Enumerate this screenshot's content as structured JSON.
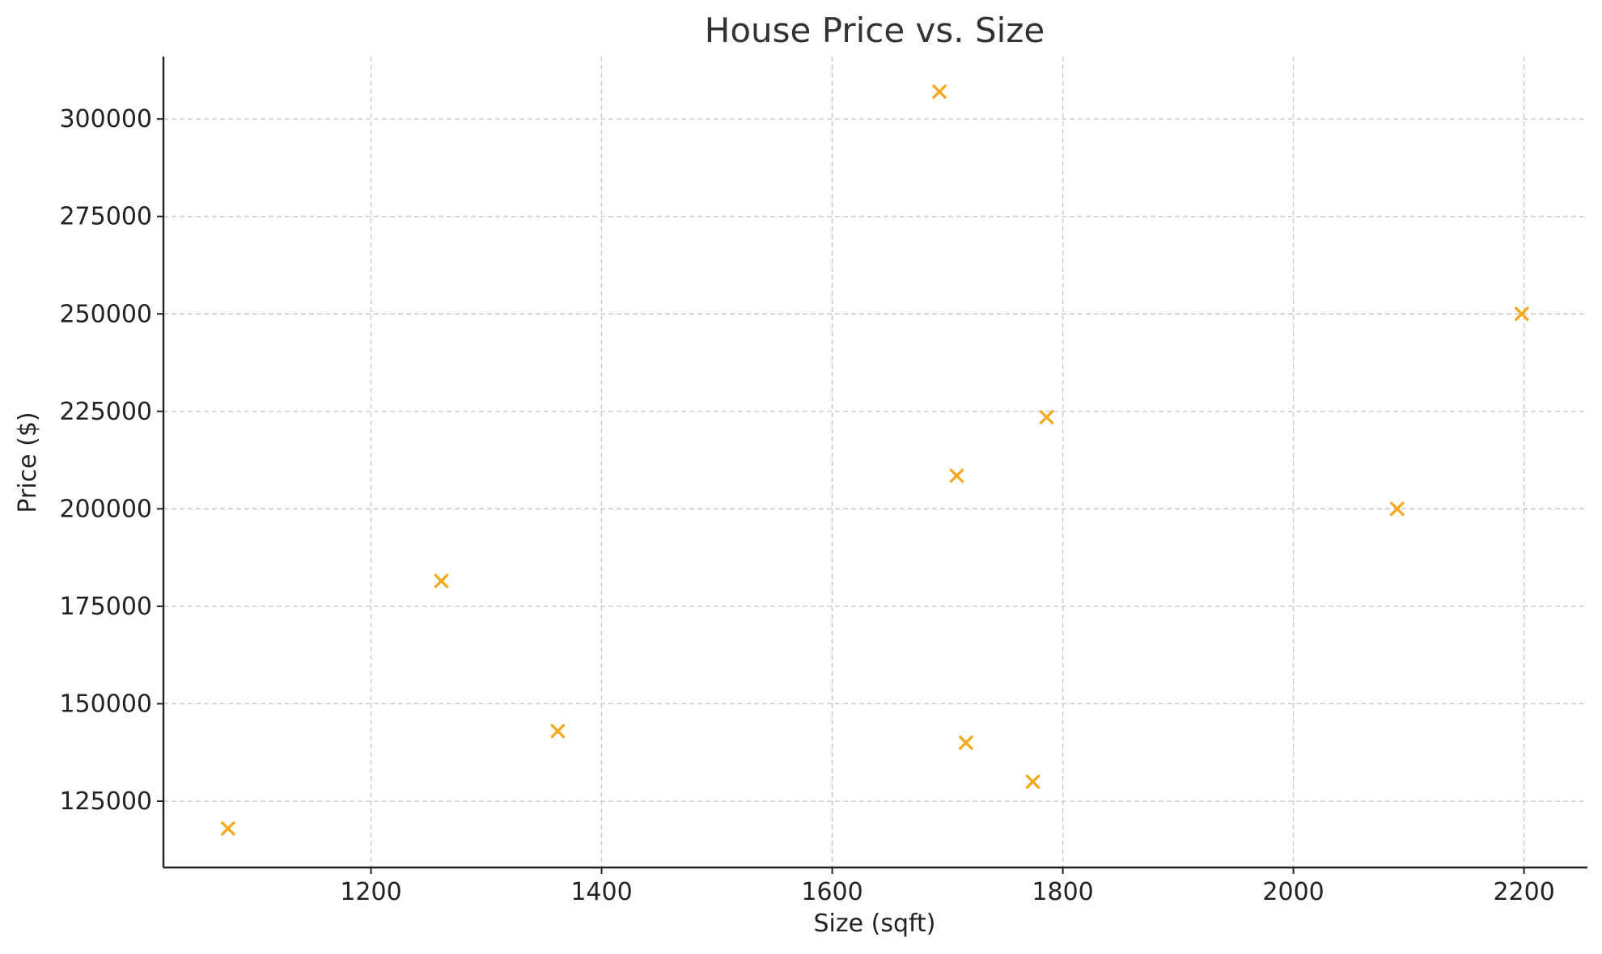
{
  "chart_data": {
    "type": "scatter",
    "title": "House Price vs. Size",
    "xlabel": "Size (sqft)",
    "ylabel": "Price ($)",
    "xlim": [
      1020,
      2255
    ],
    "ylim": [
      108000,
      316000
    ],
    "xticks": [
      1200,
      1400,
      1600,
      1800,
      2000,
      2200
    ],
    "yticks": [
      125000,
      150000,
      175000,
      200000,
      225000,
      250000,
      275000,
      300000
    ],
    "grid": true,
    "legend": "none",
    "marker": "x",
    "colors": {
      "marker": "#f5a716"
    },
    "points": [
      {
        "x": 1076,
        "y": 118000
      },
      {
        "x": 1261,
        "y": 181500
      },
      {
        "x": 1362,
        "y": 143000
      },
      {
        "x": 1693,
        "y": 307000
      },
      {
        "x": 1708,
        "y": 208500
      },
      {
        "x": 1716,
        "y": 140000
      },
      {
        "x": 1774,
        "y": 130000
      },
      {
        "x": 1786,
        "y": 223500
      },
      {
        "x": 2090,
        "y": 200000
      },
      {
        "x": 2198,
        "y": 250000
      }
    ]
  }
}
